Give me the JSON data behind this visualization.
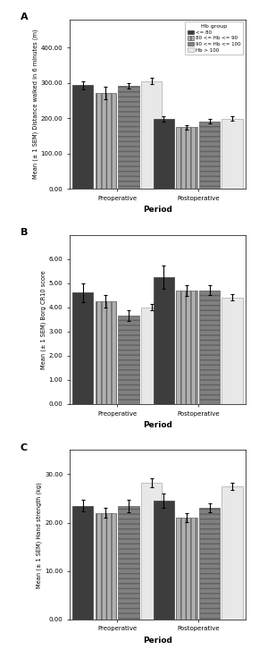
{
  "panel_labels": [
    "A",
    "B",
    "C"
  ],
  "legend_title": "Hb group",
  "legend_labels": [
    "<= 80",
    "80 <= Hb <= 90",
    "90 <= Hb <= 100",
    "Hb > 100"
  ],
  "periods": [
    "Preoperative",
    "Postoperative"
  ],
  "bar_colors": [
    "#3d3d3d",
    "#b0b0b0",
    "#808080",
    "#e8e8e8"
  ],
  "bar_hatches": [
    null,
    "|||",
    "---",
    null
  ],
  "bar_edgecolors": [
    "#3d3d3d",
    "#606060",
    "#606060",
    "#aaaaaa"
  ],
  "chartA": {
    "ylabel": "Mean (± 1 SEM) Distance walked in 6 minutes (m)",
    "xlabel": "Period",
    "ylim": [
      0,
      480
    ],
    "yticks": [
      0,
      100,
      200,
      300,
      400
    ],
    "ytick_labels": [
      "0.00",
      "100.00",
      "200.00",
      "300.00",
      "400.00"
    ],
    "values": [
      [
        293,
        272,
        292,
        305
      ],
      [
        197,
        174,
        191,
        199
      ]
    ],
    "errors": [
      [
        12,
        18,
        8,
        9
      ],
      [
        8,
        7,
        7,
        7
      ]
    ]
  },
  "chartB": {
    "ylabel": "Mean (± 1 SEM) Borg CR10 score",
    "xlabel": "Period",
    "ylim": [
      0,
      7
    ],
    "yticks": [
      0,
      1,
      2,
      3,
      4,
      5,
      6
    ],
    "ytick_labels": [
      "0.00",
      "1.00",
      "2.00",
      "3.00",
      "4.00",
      "5.00",
      "6.00"
    ],
    "values": [
      [
        4.6,
        4.25,
        3.65,
        4.0
      ],
      [
        5.25,
        4.7,
        4.7,
        4.4
      ]
    ],
    "errors": [
      [
        0.38,
        0.25,
        0.22,
        0.13
      ],
      [
        0.48,
        0.22,
        0.2,
        0.13
      ]
    ]
  },
  "chartC": {
    "ylabel": "Mean (± 1 SEM) Hand strength (kg)",
    "xlabel": "Period",
    "ylim": [
      0,
      35
    ],
    "yticks": [
      0,
      10,
      20,
      30
    ],
    "ytick_labels": [
      "0.00",
      "10.00",
      "20.00",
      "30.00"
    ],
    "values": [
      [
        23.5,
        22.0,
        23.5,
        28.2
      ],
      [
        24.5,
        21.0,
        23.0,
        27.5
      ]
    ],
    "errors": [
      [
        1.2,
        1.0,
        1.3,
        0.9
      ],
      [
        1.5,
        0.9,
        0.9,
        0.8
      ]
    ]
  }
}
